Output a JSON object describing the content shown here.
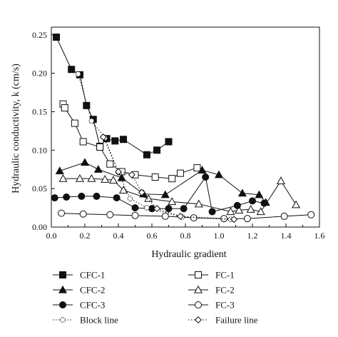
{
  "chart_data": {
    "type": "scatter",
    "title": "",
    "xlabel": "Hydraulic gradient",
    "ylabel": "Hydraulic conductivity, k (cm/s)",
    "xlim": [
      0,
      1.6
    ],
    "ylim": [
      0,
      0.26
    ],
    "xticks": [
      "0.0",
      "0.2",
      "0.4",
      "0.6",
      "0.8",
      "1.0",
      "1.2",
      "1.4",
      "1.6"
    ],
    "yticks": [
      "0.00",
      "0.05",
      "0.10",
      "0.15",
      "0.20",
      "0.25"
    ],
    "grid": false,
    "legend_position": "below plot, two columns",
    "series": [
      {
        "name": "CFC-1",
        "marker": "square",
        "fill": "filled",
        "line": "solid",
        "color": "#111111",
        "points": [
          [
            0.03,
            0.247
          ],
          [
            0.12,
            0.205
          ],
          [
            0.17,
            0.198
          ],
          [
            0.21,
            0.158
          ],
          [
            0.25,
            0.14
          ],
          [
            0.29,
            0.105
          ],
          [
            0.33,
            0.115
          ],
          [
            0.38,
            0.112
          ],
          [
            0.43,
            0.114
          ],
          [
            0.57,
            0.094
          ],
          [
            0.63,
            0.1
          ],
          [
            0.7,
            0.111
          ]
        ]
      },
      {
        "name": "FC-1",
        "marker": "square",
        "fill": "open",
        "line": "solid",
        "color": "#111111",
        "points": [
          [
            0.07,
            0.16
          ],
          [
            0.08,
            0.155
          ],
          [
            0.14,
            0.135
          ],
          [
            0.19,
            0.111
          ],
          [
            0.29,
            0.104
          ],
          [
            0.35,
            0.082
          ],
          [
            0.42,
            0.072
          ],
          [
            0.5,
            0.068
          ],
          [
            0.62,
            0.065
          ],
          [
            0.72,
            0.063
          ],
          [
            0.77,
            0.07
          ],
          [
            0.87,
            0.077
          ]
        ]
      },
      {
        "name": "CFC-2",
        "marker": "triangle",
        "fill": "filled",
        "line": "solid",
        "color": "#111111",
        "points": [
          [
            0.05,
            0.073
          ],
          [
            0.2,
            0.084
          ],
          [
            0.28,
            0.075
          ],
          [
            0.42,
            0.064
          ],
          [
            0.55,
            0.043
          ],
          [
            0.68,
            0.042
          ],
          [
            0.9,
            0.074
          ],
          [
            1.0,
            0.068
          ],
          [
            1.14,
            0.044
          ],
          [
            1.24,
            0.042
          ],
          [
            1.28,
            0.032
          ]
        ]
      },
      {
        "name": "FC-2",
        "marker": "triangle",
        "fill": "open",
        "line": "solid",
        "color": "#111111",
        "points": [
          [
            0.07,
            0.063
          ],
          [
            0.17,
            0.063
          ],
          [
            0.24,
            0.063
          ],
          [
            0.32,
            0.062
          ],
          [
            0.37,
            0.061
          ],
          [
            0.43,
            0.048
          ],
          [
            0.58,
            0.037
          ],
          [
            0.72,
            0.033
          ],
          [
            0.88,
            0.03
          ],
          [
            1.07,
            0.02
          ],
          [
            1.12,
            0.022
          ],
          [
            1.19,
            0.023
          ],
          [
            1.25,
            0.02
          ],
          [
            1.37,
            0.06
          ],
          [
            1.46,
            0.029
          ]
        ]
      },
      {
        "name": "CFC-3",
        "marker": "circle",
        "fill": "filled",
        "line": "solid",
        "color": "#111111",
        "points": [
          [
            0.02,
            0.038
          ],
          [
            0.09,
            0.039
          ],
          [
            0.18,
            0.04
          ],
          [
            0.27,
            0.04
          ],
          [
            0.39,
            0.038
          ],
          [
            0.5,
            0.025
          ],
          [
            0.6,
            0.024
          ],
          [
            0.7,
            0.024
          ],
          [
            0.79,
            0.024
          ],
          [
            0.92,
            0.065
          ],
          [
            0.96,
            0.02
          ],
          [
            1.11,
            0.028
          ],
          [
            1.2,
            0.034
          ],
          [
            1.27,
            0.031
          ]
        ]
      },
      {
        "name": "FC-3",
        "marker": "circle",
        "fill": "open",
        "line": "solid",
        "color": "#111111",
        "points": [
          [
            0.06,
            0.018
          ],
          [
            0.19,
            0.017
          ],
          [
            0.35,
            0.016
          ],
          [
            0.5,
            0.015
          ],
          [
            0.68,
            0.014
          ],
          [
            0.85,
            0.012
          ],
          [
            1.03,
            0.011
          ],
          [
            1.17,
            0.011
          ],
          [
            1.39,
            0.014
          ],
          [
            1.55,
            0.016
          ]
        ]
      },
      {
        "name": "Block line",
        "marker": "circle-small",
        "fill": "open",
        "line": "dotted",
        "color": "#111111",
        "points": [
          [
            0.16,
            0.199
          ],
          [
            0.24,
            0.138
          ],
          [
            0.32,
            0.116
          ],
          [
            0.4,
            0.071
          ],
          [
            0.47,
            0.037
          ],
          [
            0.57,
            0.025
          ],
          [
            0.78,
            0.013
          ],
          [
            1.07,
            0.01
          ]
        ]
      },
      {
        "name": "Failure line",
        "marker": "diamond",
        "fill": "open",
        "line": "dotted",
        "color": "#111111",
        "points": [
          [
            0.31,
            0.117
          ],
          [
            0.4,
            0.072
          ],
          [
            0.48,
            0.068
          ],
          [
            0.54,
            0.045
          ],
          [
            0.63,
            0.024
          ],
          [
            0.77,
            0.014
          ],
          [
            1.09,
            0.01
          ]
        ]
      }
    ]
  }
}
